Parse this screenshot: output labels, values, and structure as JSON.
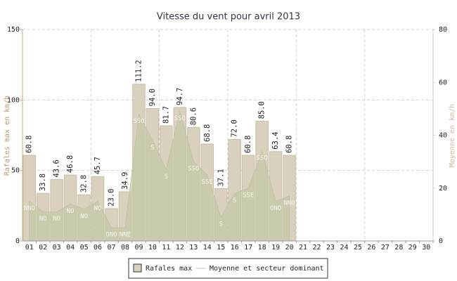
{
  "chart_data": {
    "type": "bar",
    "title": "Vitesse du vent pour avril 2013",
    "ylabel": "Rafales max en km/h",
    "y2label": "Moyenne en km/h",
    "categories": [
      "01",
      "02",
      "03",
      "04",
      "05",
      "06",
      "07",
      "08",
      "09",
      "10",
      "11",
      "12",
      "13",
      "14",
      "15",
      "16",
      "17",
      "18",
      "19",
      "20",
      "21",
      "22",
      "23",
      "24",
      "25",
      "26",
      "27",
      "28",
      "29",
      "30"
    ],
    "series": [
      {
        "name": "Rafales max",
        "color": "#d9d0bd",
        "values": [
          60.8,
          33.8,
          43.6,
          46.8,
          32.8,
          45.7,
          23.0,
          34.9,
          111.2,
          94.0,
          81.7,
          94.7,
          80.6,
          68.8,
          37.1,
          72.0,
          60.8,
          85.0,
          63.4,
          60.8,
          null,
          null,
          null,
          null,
          null,
          null,
          null,
          null,
          null,
          null
        ],
        "value_labels": [
          "60.8",
          "33.8",
          "43.6",
          "46.8",
          "32.8",
          "45.7",
          "23.0",
          "34.9",
          "111.2",
          "94.0",
          "81.7",
          "94.7",
          "80.6",
          "68.8",
          "37.1",
          "72.0",
          "60.8",
          "85.0",
          "63.4",
          "60.8",
          null,
          null,
          null,
          null,
          null,
          null,
          null,
          null,
          null,
          null
        ]
      },
      {
        "name": "Moyenne et secteur dominant",
        "type": "area",
        "axis": "y2",
        "color": "#c4c9a8",
        "values": [
          15,
          11,
          11,
          14,
          12,
          15,
          5,
          5,
          48,
          38,
          27,
          49,
          30,
          25,
          9,
          18,
          20,
          34,
          15,
          17,
          null,
          null,
          null,
          null,
          null,
          null,
          null,
          null,
          null,
          null
        ],
        "labels": [
          "NNO",
          "NO",
          "NO",
          "NO",
          "NO",
          "NO",
          "ONO",
          "NNE",
          "SSO",
          "S",
          "S",
          "SSO",
          "SSO",
          "SSE",
          "S",
          "S",
          "SSE",
          "SSO",
          "ONO",
          "NNO",
          null,
          null,
          null,
          null,
          null,
          null,
          null,
          null,
          null,
          null
        ]
      }
    ],
    "ylim": [
      0,
      150
    ],
    "yticks": [
      0,
      50,
      100,
      150
    ],
    "y2lim": [
      0,
      80
    ],
    "y2ticks": [
      0,
      20,
      40,
      60,
      80
    ],
    "grid": true,
    "legend": "bottom"
  }
}
